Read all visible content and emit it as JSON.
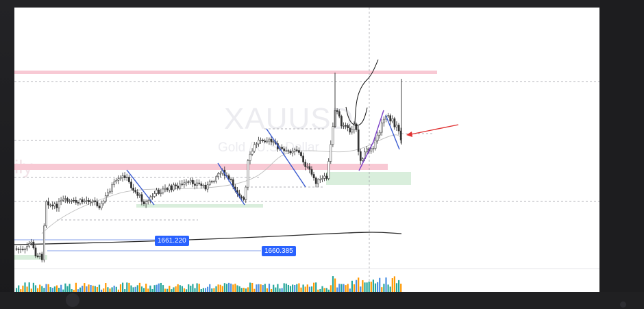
{
  "chart": {
    "symbol_watermark": "XAUUSD",
    "description_watermark": "Gold / U.S. Dollar",
    "timeframe_watermark": "ily",
    "price_labels": [
      "1661.220",
      "1660.385"
    ],
    "colors": {
      "bull_candle": "#26a69a",
      "bear_candle": "#ef5350",
      "resistance_zone": "#f8c9d4",
      "support_zone": "#cfe9d3",
      "trendline": "#3a5bd0",
      "wedge_line": "#7b3fc7",
      "arrow": "#e03030",
      "price_tag": "#2962ff",
      "volume_up": "#26a69a",
      "volume_down": "#ff9800"
    }
  }
}
